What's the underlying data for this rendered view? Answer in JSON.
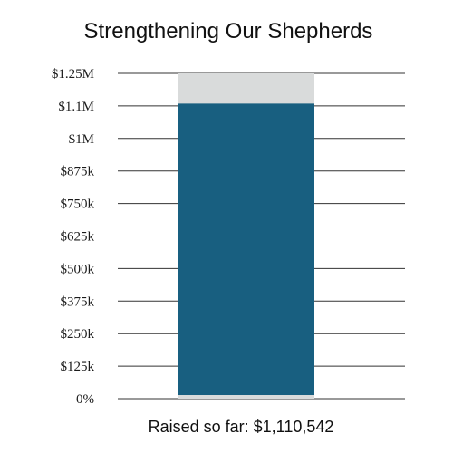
{
  "chart_data": {
    "type": "bar",
    "title": "Strengthening Our Shepherds",
    "categories": [
      ""
    ],
    "goal": 1250000,
    "raised": 1110542,
    "values": [
      1110542
    ],
    "ylim": [
      0,
      1250000
    ],
    "yticks": [
      {
        "value": 0,
        "label": "0%"
      },
      {
        "value": 125000,
        "label": "$125k"
      },
      {
        "value": 250000,
        "label": "$250k"
      },
      {
        "value": 375000,
        "label": "$375k"
      },
      {
        "value": 500000,
        "label": "$500k"
      },
      {
        "value": 625000,
        "label": "$625k"
      },
      {
        "value": 750000,
        "label": "$750k"
      },
      {
        "value": 875000,
        "label": "$875k"
      },
      {
        "value": 1000000,
        "label": "$1M"
      },
      {
        "value": 1100000,
        "label": "$1.1M"
      },
      {
        "value": 1250000,
        "label": "$1.25M"
      }
    ],
    "caption": "Raised so far: $1,110,542",
    "grid": true,
    "colors": {
      "raised": "#185f80",
      "remaining": "#d9dbdb",
      "gridline": "#333333"
    }
  }
}
